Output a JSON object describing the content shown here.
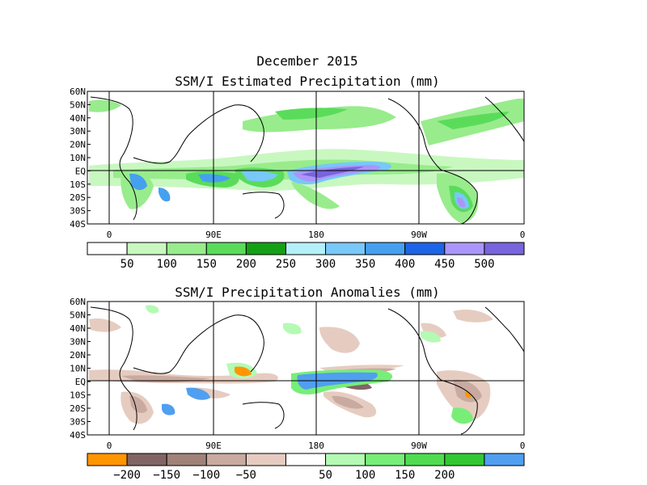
{
  "header": {
    "date_title": "December 2015"
  },
  "panels": [
    {
      "id": "estimated",
      "title": "SSM/I Estimated Precipitation (mm)",
      "lat_labels": [
        "60N",
        "50N",
        "40N",
        "30N",
        "20N",
        "10N",
        "EQ",
        "10S",
        "20S",
        "30S",
        "40S"
      ],
      "lon_labels": [
        "0",
        "90E",
        "180",
        "90W",
        "0"
      ],
      "colorbar": {
        "colors": [
          "#ffffff",
          "#c8f8c0",
          "#98ec8c",
          "#5adc5a",
          "#14a014",
          "#b4f0fa",
          "#78c8f8",
          "#46a0f0",
          "#1e64e6",
          "#aa96fa",
          "#7864dc"
        ],
        "labels": [
          "50",
          "100",
          "150",
          "200",
          "250",
          "300",
          "350",
          "400",
          "450",
          "500"
        ]
      }
    },
    {
      "id": "anomalies",
      "title": "SSM/I Precipitation Anomalies (mm)",
      "lat_labels": [
        "60N",
        "50N",
        "40N",
        "30N",
        "20N",
        "10N",
        "EQ",
        "10S",
        "20S",
        "30S",
        "40S"
      ],
      "lon_labels": [
        "0",
        "90E",
        "180",
        "90W",
        "0"
      ],
      "colorbar": {
        "colors": [
          "#ff9600",
          "#826464",
          "#a08278",
          "#c8aaa0",
          "#e6ccc0",
          "#ffffff",
          "#b4fab4",
          "#78ee78",
          "#50dc50",
          "#32c832",
          "#509ff0"
        ],
        "labels": [
          "−200",
          "−150",
          "−100",
          "−50",
          "50",
          "100",
          "150",
          "200"
        ]
      }
    }
  ]
}
